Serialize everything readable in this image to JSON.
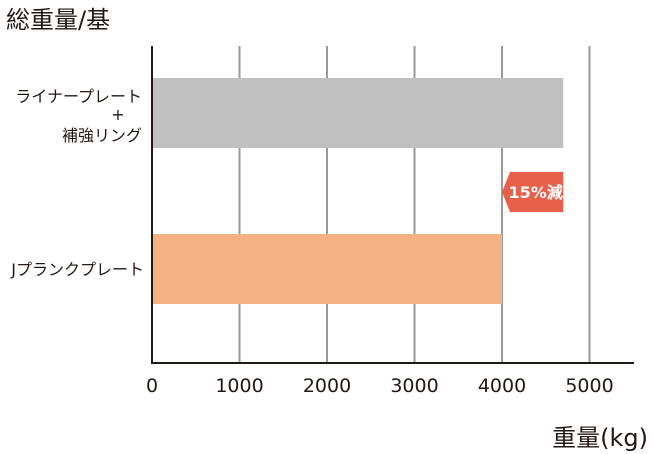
{
  "chart_data": {
    "type": "bar",
    "orientation": "horizontal",
    "title": "総重量/基",
    "xlabel": "重量(kg)",
    "ylabel": "",
    "xlim": [
      0,
      5700
    ],
    "xticks": [
      "0",
      "1000",
      "2000",
      "3000",
      "4000",
      "5000"
    ],
    "grid": true,
    "categories": [
      {
        "lines": [
          "ライナープレート",
          "+",
          "補強リング"
        ]
      },
      {
        "lines": [
          "Jプランクプレート"
        ]
      }
    ],
    "values": [
      4700,
      4000
    ],
    "colors": [
      "#c0c0c0",
      "#f4b183"
    ],
    "annotation": {
      "text": "15%減",
      "color": "#e8604a"
    }
  }
}
